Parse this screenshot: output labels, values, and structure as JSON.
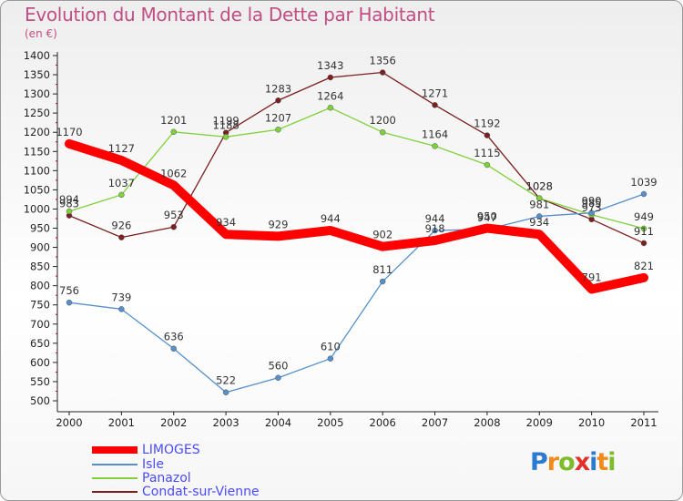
{
  "chart_data": {
    "type": "line",
    "title": "Evolution du Montant de la Dette par Habitant",
    "subtitle": "(en €)",
    "x": [
      "2000",
      "2001",
      "2002",
      "2003",
      "2004",
      "2005",
      "2006",
      "2007",
      "2008",
      "2009",
      "2010",
      "2011"
    ],
    "ylim": [
      500,
      1400
    ],
    "ytick_step": 50,
    "grid": false,
    "legend_position": "bottom-left",
    "series": [
      {
        "name": "LIMOGES",
        "color": "#ff0000",
        "values": [
          1170,
          1127,
          1062,
          934,
          929,
          944,
          902,
          918,
          950,
          934,
          791,
          821
        ]
      },
      {
        "name": "Isle",
        "color": "#5590cc",
        "values": [
          756,
          739,
          636,
          522,
          560,
          610,
          811,
          944,
          947,
          981,
          990,
          1039
        ]
      },
      {
        "name": "Panazol",
        "color": "#7fd13b",
        "values": [
          994,
          1037,
          1201,
          1188,
          1207,
          1264,
          1200,
          1164,
          1115,
          1028,
          985,
          949
        ]
      },
      {
        "name": "Condat-sur-Vienne",
        "color": "#7b1f1f",
        "values": [
          983,
          926,
          953,
          1199,
          1283,
          1343,
          1356,
          1271,
          1192,
          1028,
          973,
          911
        ]
      }
    ]
  },
  "legend": {
    "items": [
      {
        "label": "LIMOGES"
      },
      {
        "label": "Isle"
      },
      {
        "label": "Panazol"
      },
      {
        "label": "Condat-sur-Vienne"
      }
    ]
  },
  "logo": {
    "letters": [
      "P",
      "r",
      "o",
      "x",
      "i",
      "t",
      "i"
    ],
    "colors": [
      "#2b7bd1",
      "#f28a1c",
      "#7dbd2b",
      "#e0312a",
      "#2b7bd1",
      "#f28a1c",
      "#7dbd2b"
    ]
  }
}
